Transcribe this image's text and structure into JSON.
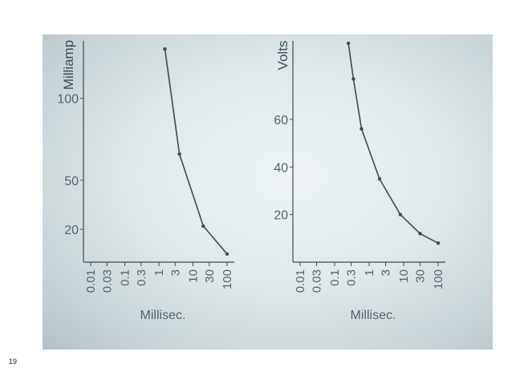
{
  "page": {
    "number": "19"
  },
  "colors": {
    "ink": "#3f4a52",
    "paper": "#e6eeef",
    "axis_text": "#55626a"
  },
  "chart_data": [
    {
      "type": "line",
      "scale": "log-x",
      "ylabel": "Milliamp",
      "xlabel": "Millisec.",
      "xticks": [
        0.01,
        0.03,
        0.1,
        0.3,
        1,
        3,
        10,
        30,
        100
      ],
      "xtick_labels": [
        "0.01",
        "0.03",
        "0.1",
        "0.3",
        "1",
        "3",
        "10",
        "30",
        "100"
      ],
      "yticks": [
        20,
        50,
        100
      ],
      "ytick_labels": [
        "20",
        "50",
        "100"
      ],
      "xlim": [
        0.01,
        100
      ],
      "ylim": [
        0,
        135
      ],
      "grid": false,
      "series": [
        {
          "points": [
            {
              "x": 1.5,
              "y": 130
            },
            {
              "x": 4,
              "y": 66
            },
            {
              "x": 20,
              "y": 22
            },
            {
              "x": 100,
              "y": 5
            }
          ]
        }
      ]
    },
    {
      "type": "line",
      "scale": "log-x",
      "ylabel": "Volts",
      "xlabel": "Millisec.",
      "xticks": [
        0.01,
        0.03,
        0.1,
        0.3,
        1,
        3,
        10,
        30,
        100
      ],
      "xtick_labels": [
        "0.01",
        "0.03",
        "0.1",
        "0.3",
        "1",
        "3",
        "10",
        "30",
        "100"
      ],
      "yticks": [
        20,
        40,
        60
      ],
      "ytick_labels": [
        "20",
        "40",
        "60"
      ],
      "xlim": [
        0.01,
        100
      ],
      "ylim": [
        0,
        93
      ],
      "grid": false,
      "series": [
        {
          "points": [
            {
              "x": 0.25,
              "y": 92
            },
            {
              "x": 0.35,
              "y": 77
            },
            {
              "x": 0.6,
              "y": 56
            },
            {
              "x": 2,
              "y": 35
            },
            {
              "x": 8,
              "y": 20
            },
            {
              "x": 30,
              "y": 12
            },
            {
              "x": 100,
              "y": 8
            }
          ]
        }
      ]
    }
  ]
}
